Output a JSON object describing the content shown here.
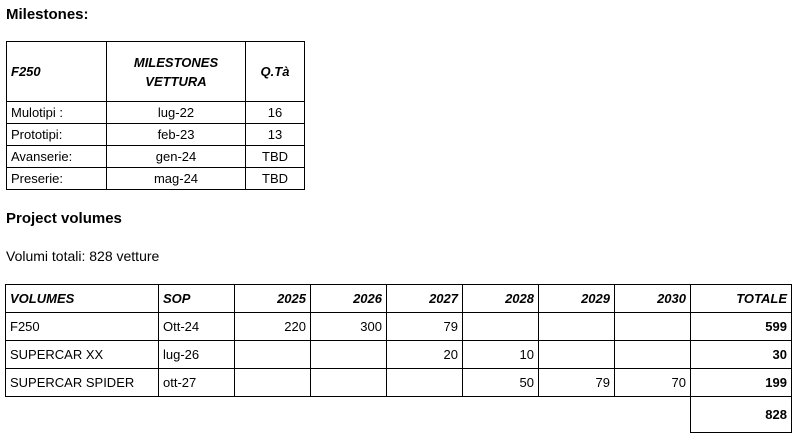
{
  "milestones": {
    "title": "Milestones:",
    "table": {
      "header": [
        "F250",
        "MILESTONES VETTURA",
        "Q.Tà"
      ],
      "rows": [
        [
          "Mulotipi :",
          "lug-22",
          16
        ],
        [
          "Prototipi:",
          "feb-23",
          13
        ],
        [
          "Avanserie:",
          "gen-24",
          "TBD"
        ],
        [
          "Preserie:",
          "mag-24",
          "TBD"
        ]
      ]
    }
  },
  "volumes": {
    "title": "Project volumes",
    "summary": "Volumi totali: 828 vetture",
    "table": {
      "header": [
        "VOLUMES",
        "SOP",
        "2025",
        "2026",
        "2027",
        "2028",
        "2029",
        "2030",
        "TOTALE"
      ],
      "rows": [
        [
          "F250",
          "Ott-24",
          220,
          300,
          79,
          null,
          null,
          null,
          599
        ],
        [
          "SUPERCAR XX",
          "lug-26",
          null,
          null,
          20,
          10,
          null,
          null,
          30
        ],
        [
          "SUPERCAR SPIDER",
          "ott-27",
          null,
          null,
          null,
          50,
          79,
          70,
          199
        ]
      ],
      "total": 828
    }
  }
}
